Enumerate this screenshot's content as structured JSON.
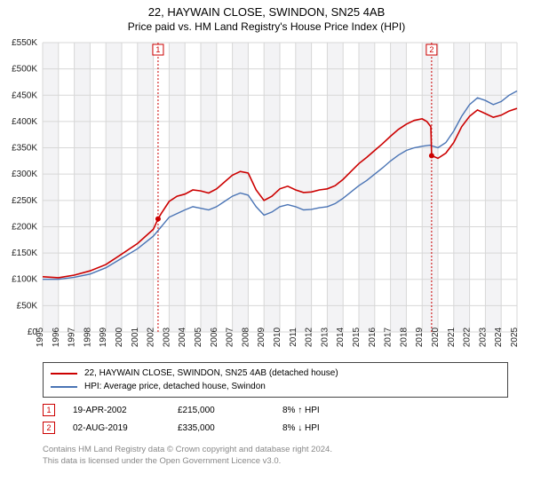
{
  "title": "22, HAYWAIN CLOSE, SWINDON, SN25 4AB",
  "subtitle": "Price paid vs. HM Land Registry's House Price Index (HPI)",
  "chart": {
    "type": "line",
    "background_color": "#ffffff",
    "grid_color": "#d7d7d7",
    "band_color": "#e9eaed",
    "ylim": [
      0,
      550000
    ],
    "ytick_step": 50000,
    "y_labels": [
      "£0",
      "£50K",
      "£100K",
      "£150K",
      "£200K",
      "£250K",
      "£300K",
      "£350K",
      "£400K",
      "£450K",
      "£500K",
      "£550K"
    ],
    "xlim": [
      1995,
      2025
    ],
    "x_labels": [
      "1995",
      "1996",
      "1997",
      "1998",
      "1999",
      "2000",
      "2001",
      "2002",
      "2003",
      "2004",
      "2005",
      "2006",
      "2007",
      "2008",
      "2009",
      "2010",
      "2011",
      "2012",
      "2013",
      "2014",
      "2015",
      "2016",
      "2017",
      "2018",
      "2019",
      "2020",
      "2021",
      "2022",
      "2023",
      "2024",
      "2025"
    ],
    "series": {
      "price_paid": {
        "color": "#cc0000",
        "width": 1.6,
        "label": "22, HAYWAIN CLOSE, SWINDON, SN25 4AB (detached house)",
        "points": [
          [
            1995.0,
            105000
          ],
          [
            1996.0,
            103000
          ],
          [
            1997.0,
            108000
          ],
          [
            1998.0,
            116000
          ],
          [
            1999.0,
            128000
          ],
          [
            2000.0,
            148000
          ],
          [
            2001.0,
            168000
          ],
          [
            2002.0,
            195000
          ],
          [
            2002.3,
            215000
          ],
          [
            2002.5,
            225000
          ],
          [
            2003.0,
            248000
          ],
          [
            2003.5,
            258000
          ],
          [
            2004.0,
            262000
          ],
          [
            2004.5,
            270000
          ],
          [
            2005.0,
            268000
          ],
          [
            2005.5,
            264000
          ],
          [
            2006.0,
            272000
          ],
          [
            2006.5,
            285000
          ],
          [
            2007.0,
            298000
          ],
          [
            2007.5,
            305000
          ],
          [
            2008.0,
            302000
          ],
          [
            2008.5,
            270000
          ],
          [
            2009.0,
            250000
          ],
          [
            2009.5,
            258000
          ],
          [
            2010.0,
            272000
          ],
          [
            2010.5,
            277000
          ],
          [
            2011.0,
            270000
          ],
          [
            2011.5,
            265000
          ],
          [
            2012.0,
            266000
          ],
          [
            2012.5,
            270000
          ],
          [
            2013.0,
            272000
          ],
          [
            2013.5,
            278000
          ],
          [
            2014.0,
            290000
          ],
          [
            2014.5,
            305000
          ],
          [
            2015.0,
            320000
          ],
          [
            2015.5,
            332000
          ],
          [
            2016.0,
            345000
          ],
          [
            2016.5,
            358000
          ],
          [
            2017.0,
            372000
          ],
          [
            2017.5,
            385000
          ],
          [
            2018.0,
            395000
          ],
          [
            2018.5,
            402000
          ],
          [
            2019.0,
            405000
          ],
          [
            2019.3,
            400000
          ],
          [
            2019.55,
            390000
          ],
          [
            2019.6,
            335000
          ],
          [
            2020.0,
            330000
          ],
          [
            2020.5,
            340000
          ],
          [
            2021.0,
            360000
          ],
          [
            2021.5,
            390000
          ],
          [
            2022.0,
            410000
          ],
          [
            2022.5,
            422000
          ],
          [
            2023.0,
            415000
          ],
          [
            2023.5,
            408000
          ],
          [
            2024.0,
            412000
          ],
          [
            2024.5,
            420000
          ],
          [
            2025.0,
            425000
          ]
        ]
      },
      "hpi": {
        "color": "#4a74b5",
        "width": 1.4,
        "label": "HPI: Average price, detached house, Swindon",
        "points": [
          [
            1995.0,
            100000
          ],
          [
            1996.0,
            100000
          ],
          [
            1997.0,
            104000
          ],
          [
            1998.0,
            110000
          ],
          [
            1999.0,
            122000
          ],
          [
            2000.0,
            140000
          ],
          [
            2001.0,
            158000
          ],
          [
            2002.0,
            182000
          ],
          [
            2002.5,
            200000
          ],
          [
            2003.0,
            218000
          ],
          [
            2003.5,
            225000
          ],
          [
            2004.0,
            232000
          ],
          [
            2004.5,
            238000
          ],
          [
            2005.0,
            235000
          ],
          [
            2005.5,
            232000
          ],
          [
            2006.0,
            238000
          ],
          [
            2006.5,
            248000
          ],
          [
            2007.0,
            258000
          ],
          [
            2007.5,
            264000
          ],
          [
            2008.0,
            260000
          ],
          [
            2008.5,
            238000
          ],
          [
            2009.0,
            222000
          ],
          [
            2009.5,
            228000
          ],
          [
            2010.0,
            238000
          ],
          [
            2010.5,
            242000
          ],
          [
            2011.0,
            238000
          ],
          [
            2011.5,
            232000
          ],
          [
            2012.0,
            233000
          ],
          [
            2012.5,
            236000
          ],
          [
            2013.0,
            238000
          ],
          [
            2013.5,
            244000
          ],
          [
            2014.0,
            254000
          ],
          [
            2014.5,
            266000
          ],
          [
            2015.0,
            278000
          ],
          [
            2015.5,
            288000
          ],
          [
            2016.0,
            300000
          ],
          [
            2016.5,
            312000
          ],
          [
            2017.0,
            325000
          ],
          [
            2017.5,
            336000
          ],
          [
            2018.0,
            345000
          ],
          [
            2018.5,
            350000
          ],
          [
            2019.0,
            353000
          ],
          [
            2019.5,
            355000
          ],
          [
            2020.0,
            350000
          ],
          [
            2020.5,
            360000
          ],
          [
            2021.0,
            382000
          ],
          [
            2021.5,
            410000
          ],
          [
            2022.0,
            432000
          ],
          [
            2022.5,
            445000
          ],
          [
            2023.0,
            440000
          ],
          [
            2023.5,
            432000
          ],
          [
            2024.0,
            438000
          ],
          [
            2024.5,
            450000
          ],
          [
            2025.0,
            458000
          ]
        ]
      }
    },
    "markers": [
      {
        "n": "1",
        "x": 2002.3,
        "y": 215000
      },
      {
        "n": "2",
        "x": 2019.6,
        "y": 335000
      }
    ]
  },
  "legend": {
    "red_label": "22, HAYWAIN CLOSE, SWINDON, SN25 4AB (detached house)",
    "blue_label": "HPI: Average price, detached house, Swindon"
  },
  "sales": [
    {
      "n": "1",
      "date": "19-APR-2002",
      "price": "£215,000",
      "pct": "8% ↑ HPI",
      "dir": "up"
    },
    {
      "n": "2",
      "date": "02-AUG-2019",
      "price": "£335,000",
      "pct": "8% ↓ HPI",
      "dir": "dn"
    }
  ],
  "footer": {
    "line1": "Contains HM Land Registry data © Crown copyright and database right 2024.",
    "line2": "This data is licensed under the Open Government Licence v3.0."
  }
}
